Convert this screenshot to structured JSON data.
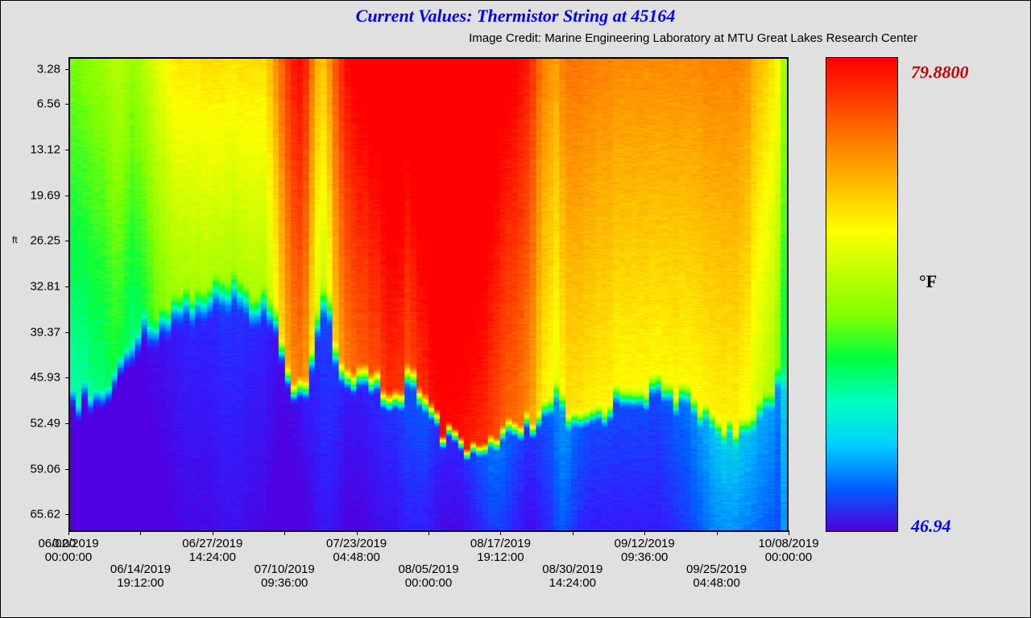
{
  "title": "Current Values: Thermistor String at 45164",
  "credit": "Image Credit: Marine Engineering Laboratory at MTU Great Lakes Research Center",
  "y": {
    "label": "ft",
    "ticks": [
      {
        "v": "3.28",
        "pos": 0.025
      },
      {
        "v": "6.56",
        "pos": 0.099
      },
      {
        "v": "13.12",
        "pos": 0.195
      },
      {
        "v": "19.69",
        "pos": 0.291
      },
      {
        "v": "26.25",
        "pos": 0.387
      },
      {
        "v": "32.81",
        "pos": 0.483
      },
      {
        "v": "39.37",
        "pos": 0.579
      },
      {
        "v": "45.93",
        "pos": 0.675
      },
      {
        "v": "52.49",
        "pos": 0.771
      },
      {
        "v": "59.06",
        "pos": 0.867
      },
      {
        "v": "65.62",
        "pos": 0.963
      }
    ]
  },
  "x": {
    "zero_overlap": "0.00",
    "ticks": [
      {
        "d": "06/02/2019",
        "t": "00:00:00",
        "pos": 0.0,
        "offset": 0
      },
      {
        "d": "06/14/2019",
        "t": "19:12:00",
        "pos": 0.1,
        "offset": 1
      },
      {
        "d": "06/27/2019",
        "t": "14:24:00",
        "pos": 0.2,
        "offset": 0
      },
      {
        "d": "07/10/2019",
        "t": "09:36:00",
        "pos": 0.3,
        "offset": 1
      },
      {
        "d": "07/23/2019",
        "t": "04:48:00",
        "pos": 0.4,
        "offset": 0
      },
      {
        "d": "08/05/2019",
        "t": "00:00:00",
        "pos": 0.5,
        "offset": 1
      },
      {
        "d": "08/17/2019",
        "t": "19:12:00",
        "pos": 0.6,
        "offset": 0
      },
      {
        "d": "08/30/2019",
        "t": "14:24:00",
        "pos": 0.7,
        "offset": 1
      },
      {
        "d": "09/12/2019",
        "t": "09:36:00",
        "pos": 0.8,
        "offset": 0
      },
      {
        "d": "09/25/2019",
        "t": "04:48:00",
        "pos": 0.9,
        "offset": 1
      },
      {
        "d": "10/08/2019",
        "t": "00:00:00",
        "pos": 1.0,
        "offset": 0
      }
    ]
  },
  "colorbar": {
    "unit": "°F",
    "max": "79.8800",
    "min": "46.94",
    "max_color": "#cc0000",
    "min_color": "#0000ff",
    "gradient": [
      "#ff0000",
      "#ff4000",
      "#ff8000",
      "#ffc000",
      "#ffff00",
      "#c0ff00",
      "#80ff00",
      "#00ff40",
      "#00ffc0",
      "#00d0ff",
      "#0060ff",
      "#5000e0"
    ]
  },
  "heatmap": {
    "type": "heatmap",
    "width_cols": 120,
    "height_rows": 11,
    "palette": [
      "#5000e0",
      "#3020ff",
      "#0060ff",
      "#00b0ff",
      "#00ffc0",
      "#00ff40",
      "#80ff00",
      "#c0ff00",
      "#ffff00",
      "#ffc000",
      "#ff8000",
      "#ff4000",
      "#ff0000"
    ],
    "thermocline": [
      0.72,
      0.71,
      0.7,
      0.71,
      0.7,
      0.7,
      0.68,
      0.67,
      0.63,
      0.6,
      0.57,
      0.55,
      0.54,
      0.52,
      0.53,
      0.52,
      0.5,
      0.49,
      0.48,
      0.48,
      0.48,
      0.47,
      0.47,
      0.47,
      0.46,
      0.46,
      0.46,
      0.46,
      0.47,
      0.47,
      0.47,
      0.48,
      0.48,
      0.5,
      0.53,
      0.58,
      0.62,
      0.66,
      0.67,
      0.66,
      0.6,
      0.5,
      0.47,
      0.5,
      0.58,
      0.62,
      0.66,
      0.66,
      0.66,
      0.66,
      0.67,
      0.67,
      0.68,
      0.7,
      0.7,
      0.68,
      0.64,
      0.66,
      0.7,
      0.72,
      0.74,
      0.76,
      0.78,
      0.79,
      0.8,
      0.82,
      0.82,
      0.82,
      0.82,
      0.82,
      0.8,
      0.8,
      0.79,
      0.78,
      0.78,
      0.77,
      0.76,
      0.76,
      0.76,
      0.74,
      0.7,
      0.68,
      0.72,
      0.76,
      0.76,
      0.75,
      0.74,
      0.74,
      0.73,
      0.72,
      0.71,
      0.7,
      0.69,
      0.68,
      0.68,
      0.68,
      0.68,
      0.68,
      0.68,
      0.68,
      0.69,
      0.69,
      0.7,
      0.7,
      0.71,
      0.72,
      0.73,
      0.74,
      0.75,
      0.76,
      0.77,
      0.78,
      0.78,
      0.78,
      0.75,
      0.72,
      0.7,
      0.68,
      0.65,
      0.62
    ],
    "surface_warmth": [
      0.35,
      0.35,
      0.36,
      0.37,
      0.38,
      0.38,
      0.4,
      0.42,
      0.42,
      0.4,
      0.38,
      0.4,
      0.42,
      0.45,
      0.48,
      0.5,
      0.52,
      0.54,
      0.55,
      0.55,
      0.55,
      0.55,
      0.56,
      0.56,
      0.56,
      0.56,
      0.55,
      0.55,
      0.56,
      0.56,
      0.56,
      0.56,
      0.56,
      0.6,
      0.66,
      0.72,
      0.78,
      0.82,
      0.84,
      0.8,
      0.7,
      0.62,
      0.6,
      0.66,
      0.74,
      0.8,
      0.84,
      0.86,
      0.88,
      0.88,
      0.9,
      0.9,
      0.92,
      0.94,
      0.94,
      0.93,
      0.9,
      0.92,
      0.94,
      0.95,
      0.98,
      0.99,
      1.0,
      1.0,
      0.99,
      0.98,
      0.97,
      0.96,
      0.95,
      0.94,
      0.92,
      0.9,
      0.88,
      0.87,
      0.86,
      0.84,
      0.82,
      0.78,
      0.72,
      0.68,
      0.66,
      0.64,
      0.68,
      0.7,
      0.7,
      0.7,
      0.69,
      0.69,
      0.68,
      0.68,
      0.68,
      0.67,
      0.67,
      0.67,
      0.67,
      0.67,
      0.67,
      0.67,
      0.67,
      0.67,
      0.67,
      0.67,
      0.67,
      0.67,
      0.67,
      0.67,
      0.68,
      0.68,
      0.68,
      0.68,
      0.68,
      0.68,
      0.67,
      0.66,
      0.62,
      0.6,
      0.58,
      0.56,
      0.52,
      0.4
    ],
    "bottom_cold": [
      0.0,
      0.0,
      0.0,
      0.01,
      0.01,
      0.02,
      0.0,
      0.0,
      0.0,
      0.0,
      0.01,
      0.02,
      0.03,
      0.04,
      0.05,
      0.06,
      0.07,
      0.08,
      0.09,
      0.1,
      0.1,
      0.1,
      0.1,
      0.1,
      0.11,
      0.12,
      0.12,
      0.12,
      0.12,
      0.11,
      0.1,
      0.1,
      0.1,
      0.08,
      0.06,
      0.04,
      0.04,
      0.05,
      0.06,
      0.08,
      0.1,
      0.12,
      0.14,
      0.14,
      0.12,
      0.1,
      0.08,
      0.08,
      0.08,
      0.09,
      0.1,
      0.11,
      0.12,
      0.12,
      0.12,
      0.14,
      0.16,
      0.16,
      0.16,
      0.16,
      0.14,
      0.12,
      0.1,
      0.1,
      0.1,
      0.1,
      0.12,
      0.14,
      0.16,
      0.18,
      0.2,
      0.2,
      0.2,
      0.18,
      0.16,
      0.14,
      0.12,
      0.12,
      0.14,
      0.16,
      0.18,
      0.22,
      0.24,
      0.22,
      0.19,
      0.17,
      0.16,
      0.15,
      0.15,
      0.15,
      0.15,
      0.15,
      0.15,
      0.15,
      0.15,
      0.15,
      0.15,
      0.15,
      0.15,
      0.16,
      0.17,
      0.18,
      0.19,
      0.2,
      0.22,
      0.24,
      0.26,
      0.28,
      0.29,
      0.3,
      0.3,
      0.3,
      0.29,
      0.28,
      0.27,
      0.26,
      0.25,
      0.24,
      0.22,
      0.3
    ]
  },
  "style": {
    "title_color": "#0000ff",
    "title_fontsize": 22,
    "credit_fontsize": 15,
    "tick_fontsize": 15,
    "background_color": "#e0e0e0",
    "border_color": "#000000",
    "chart_border_width": 2,
    "value_label_max_color": "#cc0000",
    "value_label_min_color": "#0000ff",
    "value_label_fontsize": 22
  }
}
